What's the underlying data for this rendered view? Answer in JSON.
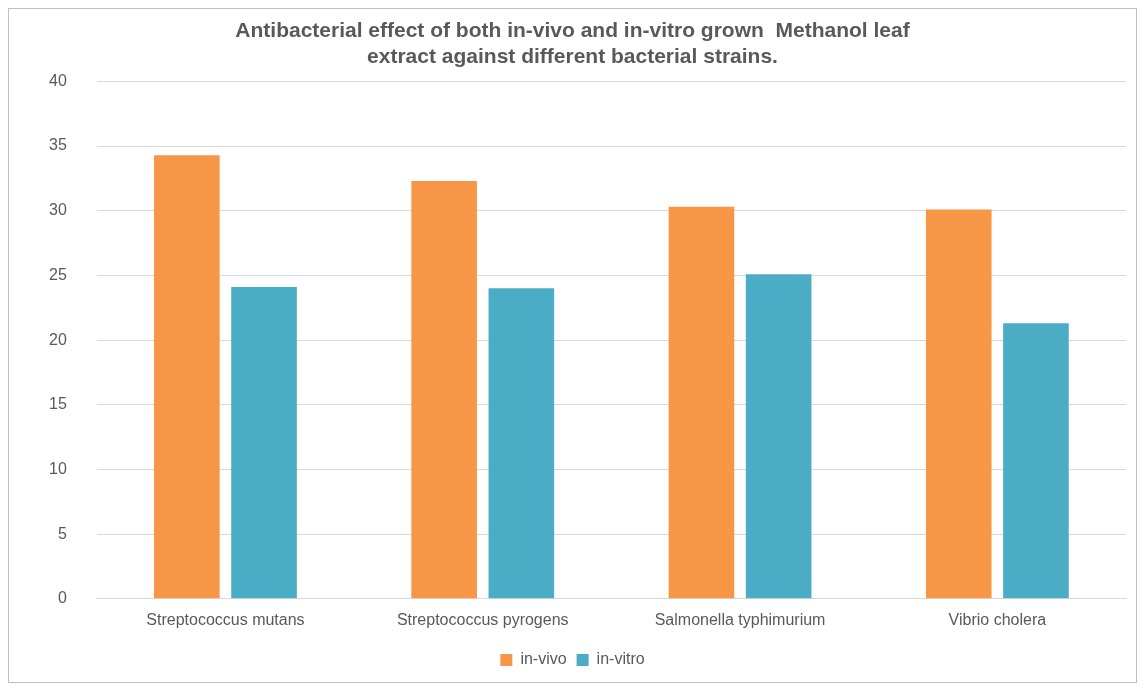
{
  "chart_data": {
    "type": "bar",
    "title": "Antibacterial effect of both in-vivo and in-vitro grown  Methanol leaf extract against different bacterial strains.",
    "categories": [
      "Streptococcus mutans",
      "Streptococcus pyrogens",
      "Salmonella typhimurium",
      "Vibrio cholera"
    ],
    "series": [
      {
        "name": "in-vivo",
        "color": "#f79646",
        "values": [
          34.3,
          32.3,
          30.3,
          30.1
        ]
      },
      {
        "name": "in-vitro",
        "color": "#4bacc6",
        "values": [
          24.1,
          24.0,
          25.1,
          21.3
        ]
      }
    ],
    "ylim": [
      0,
      40
    ],
    "yticks": [
      0,
      5,
      10,
      15,
      20,
      25,
      30,
      35,
      40
    ],
    "grid": "y",
    "legend": "bottom"
  }
}
